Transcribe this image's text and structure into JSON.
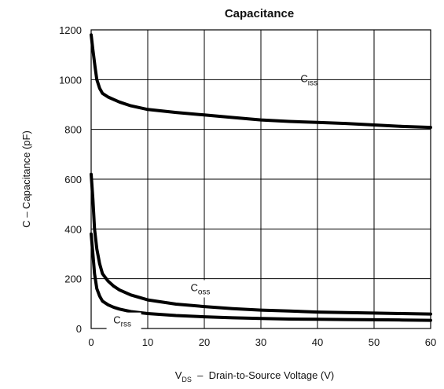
{
  "chart_data": {
    "type": "line",
    "title": "Capacitance",
    "xlabel": "V_DS – Drain-to-Source Voltage (V)",
    "xlabel_parts": {
      "main": "V",
      "sub": "DS",
      "rest": "  –  Drain-to-Source Voltage (V)"
    },
    "ylabel": "C – Capacitance (pF)",
    "xlim": [
      0,
      60
    ],
    "ylim": [
      0,
      1200
    ],
    "grid": true,
    "x_ticks": [
      0,
      10,
      20,
      30,
      40,
      50,
      60
    ],
    "y_ticks": [
      0,
      200,
      400,
      600,
      800,
      1000,
      1200
    ],
    "series": [
      {
        "name": "Ciss",
        "label_main": "C",
        "label_sub": "iss",
        "x": [
          0,
          0.3,
          0.7,
          1,
          1.5,
          2,
          3,
          4,
          5,
          7,
          10,
          15,
          20,
          25,
          30,
          35,
          40,
          45,
          50,
          55,
          60
        ],
        "values": [
          1180,
          1120,
          1050,
          1000,
          965,
          945,
          930,
          920,
          910,
          895,
          880,
          868,
          858,
          848,
          838,
          832,
          828,
          824,
          818,
          812,
          808
        ]
      },
      {
        "name": "Coss",
        "label_main": "C",
        "label_sub": "oss",
        "x": [
          0,
          0.3,
          0.6,
          1,
          1.5,
          2,
          3,
          4,
          5,
          7,
          10,
          15,
          20,
          25,
          30,
          35,
          40,
          45,
          50,
          55,
          60
        ],
        "values": [
          620,
          520,
          400,
          320,
          260,
          220,
          190,
          170,
          155,
          135,
          115,
          98,
          88,
          80,
          74,
          70,
          66,
          64,
          62,
          60,
          58
        ]
      },
      {
        "name": "Crss",
        "label_main": "C",
        "label_sub": "rss",
        "x": [
          0,
          0.3,
          0.6,
          1,
          1.5,
          2,
          3,
          4,
          5,
          7,
          10,
          15,
          20,
          25,
          30,
          35,
          40,
          45,
          50,
          55,
          60
        ],
        "values": [
          380,
          300,
          220,
          160,
          130,
          110,
          95,
          85,
          78,
          68,
          60,
          52,
          47,
          43,
          40,
          38,
          37,
          36,
          35,
          34,
          33
        ]
      }
    ]
  }
}
